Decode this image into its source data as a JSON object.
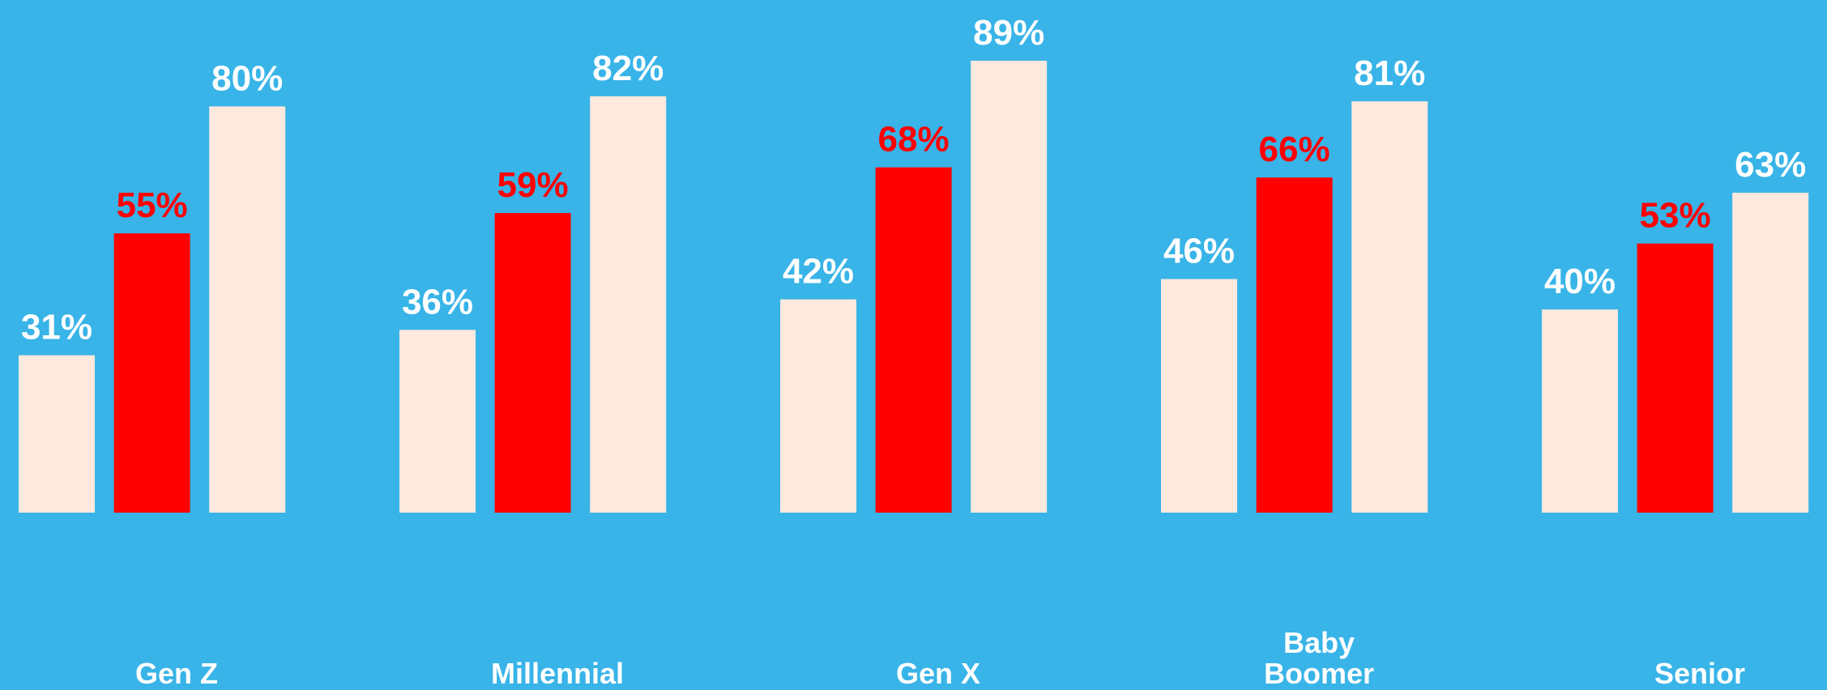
{
  "chart_data": {
    "type": "bar",
    "categories": [
      "Gen Z",
      "Millennial",
      "Gen X",
      "Baby Boomer",
      "Senior"
    ],
    "series": [
      {
        "color": "#fde9dd",
        "label_color": "#ffffff",
        "values": [
          31,
          36,
          42,
          46,
          40
        ],
        "value_labels": [
          "31%",
          "36%",
          "42%",
          "46%",
          "40%"
        ]
      },
      {
        "color": "#ff0000",
        "label_color": "#ff0000",
        "values": [
          55,
          59,
          68,
          66,
          53
        ],
        "value_labels": [
          "55%",
          "59%",
          "68%",
          "66%",
          "53%"
        ]
      },
      {
        "color": "#fde9dd",
        "label_color": "#ffffff",
        "values": [
          80,
          82,
          89,
          81,
          63
        ],
        "value_labels": [
          "80%",
          "82%",
          "89%",
          "81%",
          "63%"
        ]
      }
    ],
    "ylim": [
      0,
      100
    ]
  }
}
